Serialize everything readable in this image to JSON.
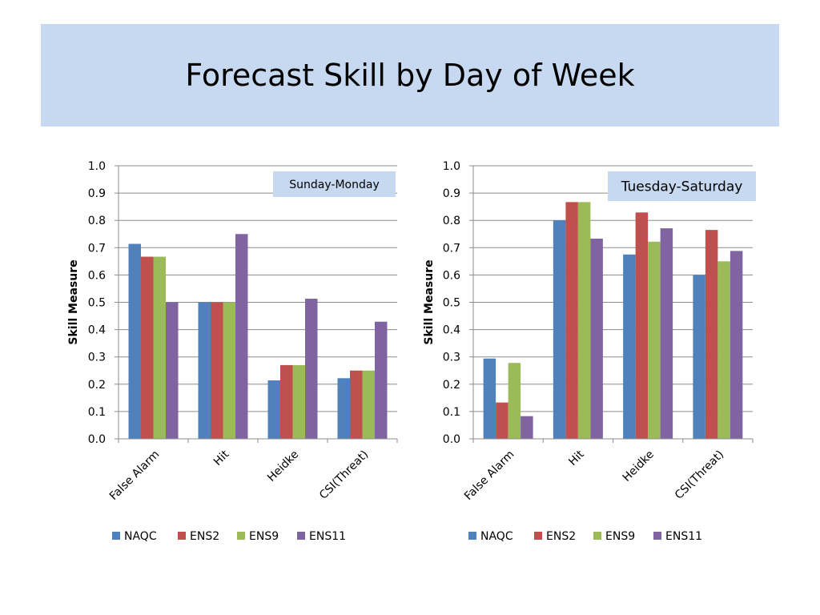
{
  "slide": {
    "title": "Forecast Skill by Day of Week"
  },
  "colors": {
    "title_band": "#c6d9f0",
    "box_label": "#c6d9f0",
    "NAQC": "#4f81bd",
    "ENS2": "#c0504d",
    "ENS9": "#9bbb59",
    "ENS11": "#8064a2"
  },
  "chart_data": [
    {
      "type": "bar",
      "annotation": "Sunday-Monday",
      "title": "",
      "xlabel": "",
      "ylabel": "Skill Measure",
      "ylim": [
        0,
        1.0
      ],
      "yticks": [
        "0.0",
        "0.1",
        "0.2",
        "0.3",
        "0.4",
        "0.5",
        "0.6",
        "0.7",
        "0.8",
        "0.9",
        "1.0"
      ],
      "grid": true,
      "legend": "bottom",
      "categories": [
        "False Alarm",
        "Hit",
        "Heidke",
        "CSI(Threat)"
      ],
      "series": [
        {
          "name": "NAQC",
          "values": [
            0.714,
            0.5,
            0.214,
            0.222
          ]
        },
        {
          "name": "ENS2",
          "values": [
            0.667,
            0.5,
            0.27,
            0.25
          ]
        },
        {
          "name": "ENS9",
          "values": [
            0.667,
            0.5,
            0.27,
            0.25
          ]
        },
        {
          "name": "ENS11",
          "values": [
            0.5,
            0.75,
            0.513,
            0.429
          ]
        }
      ]
    },
    {
      "type": "bar",
      "annotation": "Tuesday-Saturday",
      "title": "",
      "xlabel": "",
      "ylabel": "Skill Measure",
      "ylim": [
        0,
        1.0
      ],
      "yticks": [
        "0.0",
        "0.1",
        "0.2",
        "0.3",
        "0.4",
        "0.5",
        "0.6",
        "0.7",
        "0.8",
        "0.9",
        "1.0"
      ],
      "grid": true,
      "legend": "bottom",
      "categories": [
        "False Alarm",
        "Hit",
        "Heidke",
        "CSI(Threat)"
      ],
      "series": [
        {
          "name": "NAQC",
          "values": [
            0.294,
            0.8,
            0.675,
            0.6
          ]
        },
        {
          "name": "ENS2",
          "values": [
            0.133,
            0.867,
            0.829,
            0.765
          ]
        },
        {
          "name": "ENS9",
          "values": [
            0.278,
            0.867,
            0.722,
            0.65
          ]
        },
        {
          "name": "ENS11",
          "values": [
            0.083,
            0.733,
            0.771,
            0.688
          ]
        }
      ]
    }
  ]
}
